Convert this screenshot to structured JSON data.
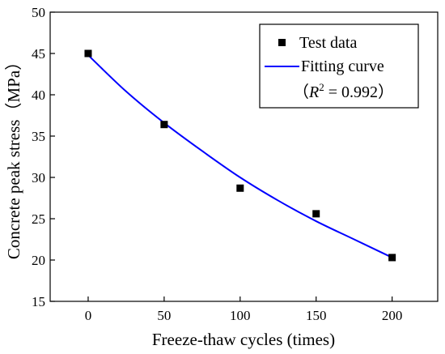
{
  "chart_data": {
    "type": "scatter",
    "xlabel": "Freeze-thaw cycles (times)",
    "ylabel": "Concrete peak stress（MPa）",
    "xlim": [
      -25,
      230
    ],
    "ylim": [
      15,
      50
    ],
    "x_ticks": [
      0,
      50,
      100,
      150,
      200
    ],
    "y_ticks": [
      15,
      20,
      25,
      30,
      35,
      40,
      45,
      50
    ],
    "grid": false,
    "legend_position": "top-right",
    "series": [
      {
        "name": "Test data",
        "kind": "scatter",
        "marker": "square",
        "color": "#000000",
        "x": [
          0,
          50,
          100,
          150,
          200
        ],
        "y": [
          45.0,
          36.4,
          28.7,
          25.6,
          20.3
        ]
      },
      {
        "name": "Fitting curve",
        "kind": "line",
        "color": "#0000ff",
        "x": [
          0,
          25,
          50,
          75,
          100,
          125,
          150,
          175,
          200
        ],
        "y": [
          44.8,
          40.4,
          36.6,
          33.2,
          30.0,
          27.2,
          24.7,
          22.5,
          20.3
        ]
      }
    ],
    "annotation": {
      "prefix": "（",
      "R": "R",
      "sup": "2",
      "value": " = 0.992）"
    }
  }
}
